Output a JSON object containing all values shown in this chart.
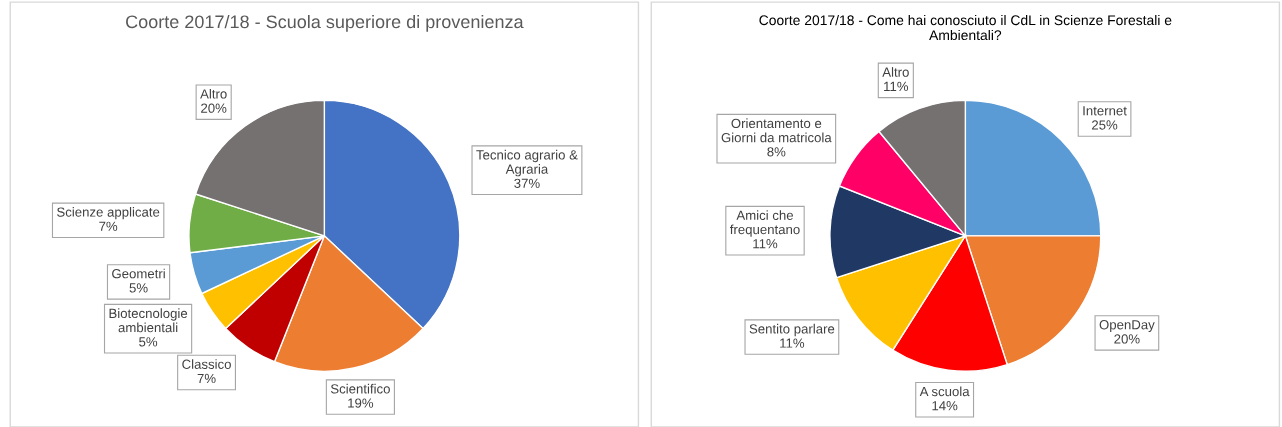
{
  "chart_data": [
    {
      "type": "pie",
      "title": "Coorte 2017/18 - Scuola superiore di provenienza",
      "categories": [
        "Tecnico agrario &\nAgraria",
        "Scientifico",
        "Classico",
        "Biotecnologie\nambientali",
        "Geometri",
        "Scienze applicate",
        "Altro"
      ],
      "values": [
        37,
        19,
        7,
        5,
        5,
        7,
        20
      ],
      "value_labels": [
        "37%",
        "19%",
        "7%",
        "5%",
        "5%",
        "7%",
        "20%"
      ],
      "colors": [
        "#4472c4",
        "#ed7d31",
        "#c00000",
        "#ffc000",
        "#5b9bd5",
        "#70ad47",
        "#767171"
      ]
    },
    {
      "type": "pie",
      "title": "Coorte 2017/18 - Come hai conosciuto il CdL in Scienze Forestali e\nAmbientali?",
      "categories": [
        "Internet",
        "OpenDay",
        "A scuola",
        "Sentito parlare",
        "Amici che\nfrequentano",
        "Orientamento e\nGiorni da matricola",
        "Altro"
      ],
      "values": [
        25,
        20,
        14,
        11,
        11,
        8,
        11
      ],
      "value_labels": [
        "25%",
        "20%",
        "14%",
        "11%",
        "11%",
        "8%",
        "11%"
      ],
      "colors": [
        "#5b9bd5",
        "#ed7d31",
        "#ff0000",
        "#ffc000",
        "#203864",
        "#ff0066",
        "#767171"
      ]
    }
  ]
}
